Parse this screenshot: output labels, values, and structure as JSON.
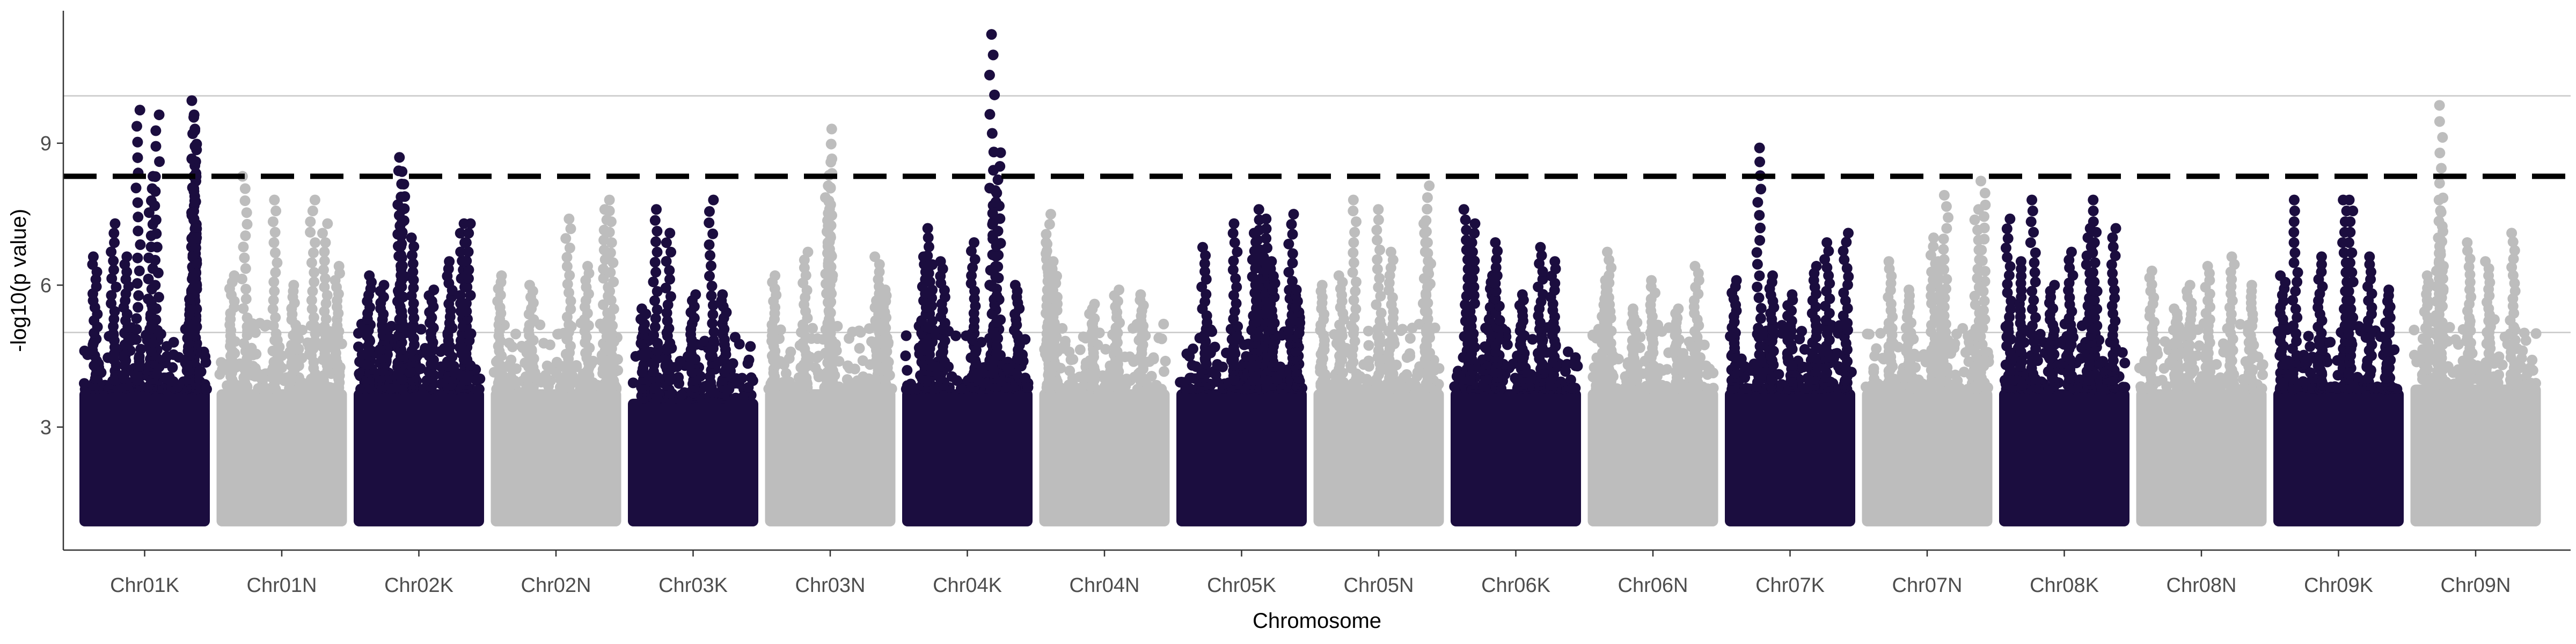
{
  "chart_data": {
    "type": "scatter",
    "subtype": "manhattan",
    "title": "",
    "xlabel": "Chromosome",
    "ylabel": "-log10(p value)",
    "ylim": [
      0.4,
      11.8
    ],
    "yticks": [
      3,
      6,
      9
    ],
    "grid": {
      "horizontal_reference_lines": [
        5,
        10
      ],
      "vertical": false
    },
    "threshold": {
      "value": 8.3,
      "style": "dashed",
      "color": "#000000"
    },
    "colors": {
      "odd": "#1b0d3f",
      "even": "#bdbdbd"
    },
    "categories": [
      "Chr01K",
      "Chr01N",
      "Chr02K",
      "Chr02N",
      "Chr03K",
      "Chr03N",
      "Chr04K",
      "Chr04N",
      "Chr05K",
      "Chr05N",
      "Chr06K",
      "Chr06N",
      "Chr07K",
      "Chr07N",
      "Chr08K",
      "Chr08N",
      "Chr09K",
      "Chr09N"
    ],
    "series": [
      {
        "name": "Chr01K",
        "base_max": 3.8,
        "peaks": [
          [
            0.55,
            8.3
          ],
          [
            0.6,
            9.6
          ],
          [
            0.45,
            9.7
          ],
          [
            0.9,
            9.9
          ],
          [
            0.9,
            9.6
          ],
          [
            0.9,
            9.3
          ],
          [
            0.9,
            8.3
          ],
          [
            0.9,
            7.4
          ],
          [
            0.9,
            7.0
          ],
          [
            0.25,
            7.3
          ],
          [
            0.35,
            6.6
          ],
          [
            0.1,
            6.6
          ],
          [
            0.85,
            5.7
          ],
          [
            0.55,
            5.7
          ]
        ]
      },
      {
        "name": "Chr01N",
        "base_max": 3.8,
        "peaks": [
          [
            0.2,
            8.3
          ],
          [
            0.1,
            6.2
          ],
          [
            0.45,
            7.8
          ],
          [
            0.75,
            7.8
          ],
          [
            0.85,
            7.3
          ],
          [
            0.95,
            6.4
          ],
          [
            0.6,
            6.0
          ]
        ]
      },
      {
        "name": "Chr02K",
        "base_max": 3.8,
        "peaks": [
          [
            0.35,
            8.7
          ],
          [
            0.37,
            8.4
          ],
          [
            0.35,
            7.7
          ],
          [
            0.45,
            7.0
          ],
          [
            0.85,
            7.3
          ],
          [
            0.9,
            7.3
          ],
          [
            0.75,
            6.5
          ],
          [
            0.1,
            6.2
          ],
          [
            0.2,
            6.0
          ],
          [
            0.6,
            5.9
          ]
        ]
      },
      {
        "name": "Chr02N",
        "base_max": 3.8,
        "peaks": [
          [
            0.6,
            7.4
          ],
          [
            0.95,
            7.8
          ],
          [
            0.9,
            7.6
          ],
          [
            0.05,
            6.2
          ],
          [
            0.3,
            6.0
          ],
          [
            0.75,
            6.4
          ]
        ]
      },
      {
        "name": "Chr03K",
        "base_max": 3.6,
        "peaks": [
          [
            0.2,
            7.6
          ],
          [
            0.3,
            7.1
          ],
          [
            0.65,
            7.8
          ],
          [
            0.5,
            5.8
          ],
          [
            0.75,
            5.8
          ],
          [
            0.1,
            5.5
          ]
        ]
      },
      {
        "name": "Chr03N",
        "base_max": 3.8,
        "peaks": [
          [
            0.5,
            9.3
          ],
          [
            0.5,
            8.6
          ],
          [
            0.48,
            8.1
          ],
          [
            0.5,
            7.7
          ],
          [
            0.3,
            6.7
          ],
          [
            0.05,
            6.2
          ],
          [
            0.88,
            6.6
          ],
          [
            0.95,
            5.9
          ]
        ]
      },
      {
        "name": "Chr04K",
        "base_max": 3.8,
        "peaks": [
          [
            0.7,
            11.3
          ],
          [
            0.75,
            8.8
          ],
          [
            0.72,
            8.0
          ],
          [
            0.55,
            6.9
          ],
          [
            0.2,
            7.2
          ],
          [
            0.15,
            6.6
          ],
          [
            0.9,
            6.0
          ],
          [
            0.3,
            6.5
          ]
        ]
      },
      {
        "name": "Chr04N",
        "base_max": 3.8,
        "peaks": [
          [
            0.05,
            7.5
          ],
          [
            0.05,
            6.9
          ],
          [
            0.1,
            6.5
          ],
          [
            0.6,
            5.9
          ],
          [
            0.8,
            5.8
          ],
          [
            0.4,
            5.6
          ]
        ]
      },
      {
        "name": "Chr05K",
        "base_max": 3.8,
        "peaks": [
          [
            0.65,
            7.6
          ],
          [
            0.7,
            7.4
          ],
          [
            0.9,
            7.5
          ],
          [
            0.6,
            7.1
          ],
          [
            0.45,
            7.3
          ],
          [
            0.2,
            6.8
          ],
          [
            0.75,
            6.5
          ],
          [
            0.95,
            5.9
          ]
        ]
      },
      {
        "name": "Chr05N",
        "base_max": 3.8,
        "peaks": [
          [
            0.3,
            7.8
          ],
          [
            0.5,
            7.6
          ],
          [
            0.9,
            8.1
          ],
          [
            0.88,
            7.3
          ],
          [
            0.6,
            6.7
          ],
          [
            0.05,
            6.0
          ],
          [
            0.2,
            6.2
          ]
        ]
      },
      {
        "name": "Chr06K",
        "base_max": 3.8,
        "peaks": [
          [
            0.1,
            7.6
          ],
          [
            0.15,
            7.3
          ],
          [
            0.3,
            6.2
          ],
          [
            0.35,
            6.9
          ],
          [
            0.7,
            6.8
          ],
          [
            0.8,
            6.5
          ],
          [
            0.55,
            5.8
          ]
        ]
      },
      {
        "name": "Chr06N",
        "base_max": 3.8,
        "peaks": [
          [
            0.15,
            6.7
          ],
          [
            0.1,
            6.1
          ],
          [
            0.5,
            6.1
          ],
          [
            0.85,
            6.4
          ],
          [
            0.35,
            5.5
          ],
          [
            0.7,
            5.5
          ]
        ]
      },
      {
        "name": "Chr07K",
        "base_max": 3.8,
        "peaks": [
          [
            0.25,
            8.9
          ],
          [
            0.05,
            6.1
          ],
          [
            0.35,
            6.2
          ],
          [
            0.8,
            6.9
          ],
          [
            0.95,
            7.1
          ],
          [
            0.7,
            6.4
          ],
          [
            0.5,
            5.8
          ]
        ]
      },
      {
        "name": "Chr07N",
        "base_max": 3.8,
        "peaks": [
          [
            0.65,
            7.9
          ],
          [
            0.95,
            8.2
          ],
          [
            0.9,
            7.6
          ],
          [
            0.55,
            7.0
          ],
          [
            0.6,
            6.5
          ],
          [
            0.2,
            6.5
          ],
          [
            0.35,
            5.9
          ]
        ]
      },
      {
        "name": "Chr08K",
        "base_max": 3.8,
        "peaks": [
          [
            0.05,
            7.4
          ],
          [
            0.25,
            7.8
          ],
          [
            0.75,
            7.8
          ],
          [
            0.15,
            6.5
          ],
          [
            0.55,
            6.7
          ],
          [
            0.7,
            7.2
          ],
          [
            0.9,
            7.2
          ],
          [
            0.4,
            6.0
          ]
        ]
      },
      {
        "name": "Chr08N",
        "base_max": 3.8,
        "peaks": [
          [
            0.1,
            6.3
          ],
          [
            0.4,
            6.0
          ],
          [
            0.55,
            6.4
          ],
          [
            0.75,
            6.6
          ],
          [
            0.9,
            6.0
          ],
          [
            0.3,
            5.5
          ]
        ]
      },
      {
        "name": "Chr09K",
        "base_max": 3.8,
        "peaks": [
          [
            0.15,
            7.8
          ],
          [
            0.55,
            7.8
          ],
          [
            0.6,
            7.8
          ],
          [
            0.35,
            6.6
          ],
          [
            0.75,
            6.6
          ],
          [
            0.05,
            6.2
          ],
          [
            0.9,
            5.9
          ]
        ]
      },
      {
        "name": "Chr09N",
        "base_max": 3.9,
        "peaks": [
          [
            0.22,
            9.8
          ],
          [
            0.22,
            7.8
          ],
          [
            0.2,
            7.0
          ],
          [
            0.45,
            6.9
          ],
          [
            0.8,
            7.1
          ],
          [
            0.6,
            6.5
          ],
          [
            0.1,
            6.2
          ]
        ]
      }
    ]
  }
}
